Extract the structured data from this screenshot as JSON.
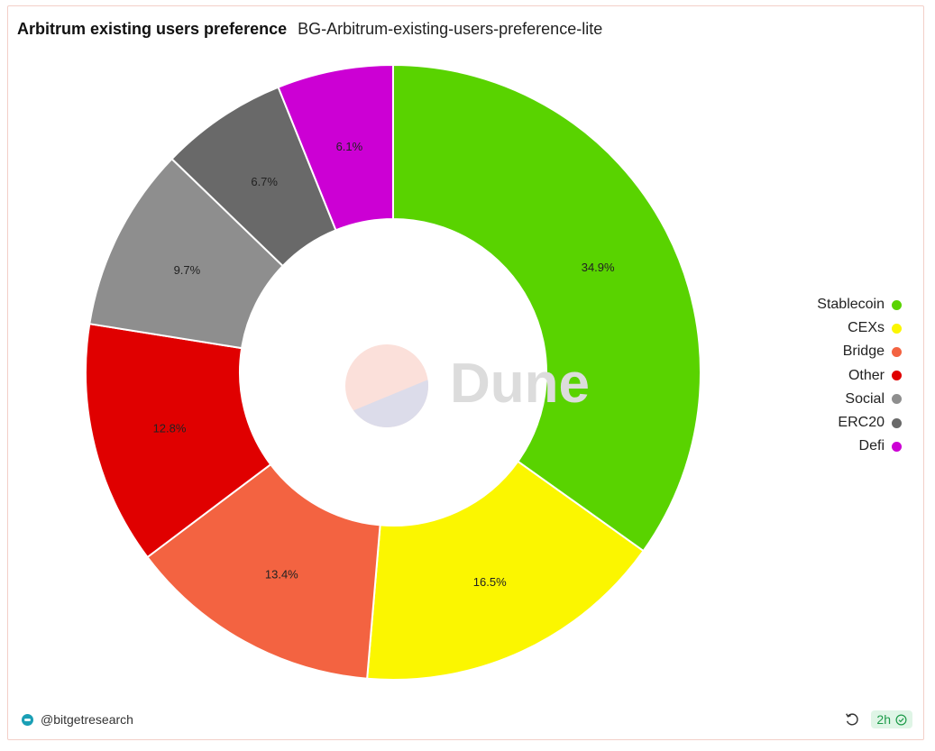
{
  "header": {
    "title": "Arbitrum existing users preference",
    "subtitle": "BG-Arbitrum-existing-users-preference-lite"
  },
  "watermark": "Dune",
  "chart_data": {
    "type": "pie",
    "donut": true,
    "slices": [
      {
        "name": "Stablecoin",
        "value": 34.9,
        "label": "34.9%",
        "color": "#59d300"
      },
      {
        "name": "CEXs",
        "value": 16.5,
        "label": "16.5%",
        "color": "#fbf600"
      },
      {
        "name": "Bridge",
        "value": 13.4,
        "label": "13.4%",
        "color": "#f36341"
      },
      {
        "name": "Other",
        "value": 12.8,
        "label": "12.8%",
        "color": "#e00000"
      },
      {
        "name": "Social",
        "value": 9.7,
        "label": "9.7%",
        "color": "#8e8e8e"
      },
      {
        "name": "ERC20",
        "value": 6.7,
        "label": "6.7%",
        "color": "#696969"
      },
      {
        "name": "Defi",
        "value": 6.1,
        "label": "6.1%",
        "color": "#cc00d4"
      }
    ],
    "legend_position": "right"
  },
  "footer": {
    "author": "@bitgetresearch",
    "age": "2h"
  },
  "icons": {
    "refresh": "refresh-icon",
    "check": "check-circle-icon",
    "avatar": "avatar-icon"
  }
}
